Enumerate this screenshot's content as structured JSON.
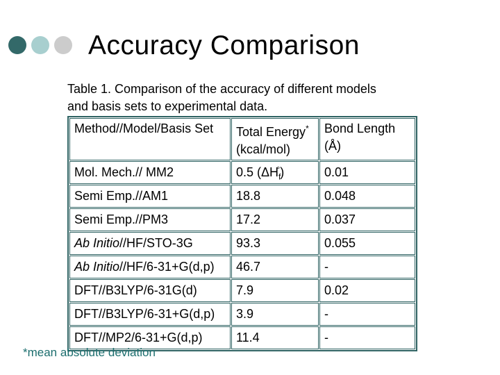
{
  "colors": {
    "bullet1": "#336969",
    "bullet2": "#a8cfcf",
    "bullet3": "#cccccc",
    "border": "#2f6363",
    "footnote": "#1c6e6e"
  },
  "slide": {
    "title": "Accuracy Comparison",
    "caption_line1": "Table 1. Comparison of the accuracy of different models",
    "caption_line2": "and basis sets to experimental data.",
    "footnote": "*mean absolute deviation"
  },
  "table": {
    "headers": [
      {
        "lines": [
          [
            {
              "t": "Method//Model/Basis Set"
            }
          ]
        ]
      },
      {
        "lines": [
          [
            {
              "t": "Total Energy"
            },
            {
              "t": "*",
              "s": "sup"
            }
          ],
          [
            {
              "t": "(kcal/mol)"
            }
          ]
        ]
      },
      {
        "lines": [
          [
            {
              "t": "Bond Length"
            }
          ],
          [
            {
              "t": "(Å)"
            }
          ]
        ]
      }
    ],
    "rows": [
      {
        "cells": [
          [
            {
              "t": "Mol. Mech.// MM2"
            }
          ],
          [
            {
              "t": "0.5 (ΔH"
            },
            {
              "t": "f",
              "s": "sub"
            },
            {
              "t": "°",
              "s": "sups"
            },
            {
              "t": ")"
            }
          ],
          [
            {
              "t": "0.01"
            }
          ]
        ]
      },
      {
        "cells": [
          [
            {
              "t": "Semi Emp.//AM1"
            }
          ],
          [
            {
              "t": "18.8"
            }
          ],
          [
            {
              "t": "0.048"
            }
          ]
        ]
      },
      {
        "cells": [
          [
            {
              "t": "Semi Emp.//PM3"
            }
          ],
          [
            {
              "t": "17.2"
            }
          ],
          [
            {
              "t": "0.037"
            }
          ]
        ]
      },
      {
        "cells": [
          [
            {
              "t": "Ab Initio",
              "s": "i"
            },
            {
              "t": "//HF/STO-3G"
            }
          ],
          [
            {
              "t": "93.3"
            }
          ],
          [
            {
              "t": "0.055"
            }
          ]
        ]
      },
      {
        "cells": [
          [
            {
              "t": "Ab Initio",
              "s": "i"
            },
            {
              "t": "//HF/6-31+G(d,p)"
            }
          ],
          [
            {
              "t": "46.7"
            }
          ],
          [
            {
              "t": "-"
            }
          ]
        ]
      },
      {
        "cells": [
          [
            {
              "t": "DFT//B3LYP/6-31G(d)"
            }
          ],
          [
            {
              "t": "7.9"
            }
          ],
          [
            {
              "t": "0.02"
            }
          ]
        ]
      },
      {
        "cells": [
          [
            {
              "t": "DFT//B3LYP/6-31+G(d,p)"
            }
          ],
          [
            {
              "t": "3.9"
            }
          ],
          [
            {
              "t": "-"
            }
          ]
        ]
      },
      {
        "cells": [
          [
            {
              "t": "DFT//MP2/6-31+G(d,p)"
            }
          ],
          [
            {
              "t": "11.4"
            }
          ],
          [
            {
              "t": "-"
            }
          ]
        ]
      }
    ]
  }
}
